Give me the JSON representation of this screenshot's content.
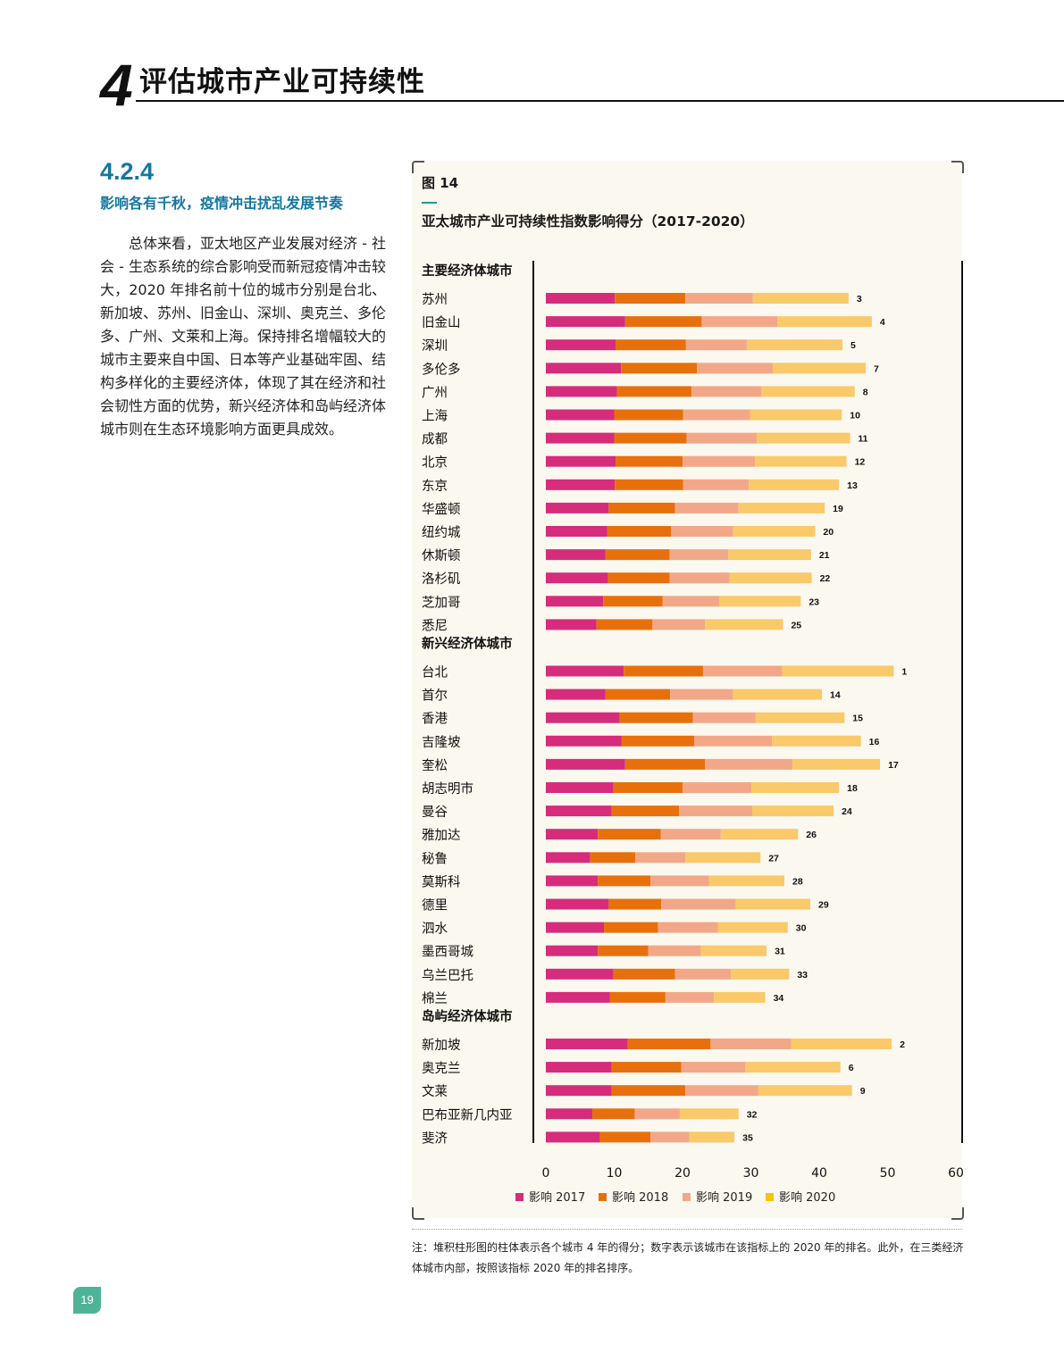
{
  "header": {
    "chapter_number": "4",
    "chapter_title": "评估城市产业可持续性"
  },
  "section": {
    "number": "4.2.4",
    "title": "影响各有千秋，疫情冲击扰乱发展节奏"
  },
  "body_text": "总体来看，亚太地区产业发展对经济 - 社会 - 生态系统的综合影响受而新冠疫情冲击较大，2020 年排名前十位的城市分别是台北、新加坡、苏州、旧金山、深圳、奥克兰、多伦多、广州、文莱和上海。保持排名增幅较大的城市主要来自中国、日本等产业基础牢固、结构多样化的主要经济体，体现了其在经济和社会韧性方面的优势，新兴经济体和岛屿经济体城市则在生态环境影响方面更具成效。",
  "figure": {
    "label": "图 14",
    "title": "亚太城市产业可持续性指数影响得分（2017-2020）"
  },
  "note": "注：堆积柱形图的柱体表示各个城市 4 年的得分；数字表示该城市在该指标上的 2020 年的排名。此外，在三类经济体城市内部，按照该指标 2020 年的排名排序。",
  "page_number": "19",
  "colors": {
    "s2017": "#d62c7c",
    "s2018": "#e8700c",
    "s2019": "#f2a888",
    "s2020": "#f9c96a",
    "accent": "#1477a0"
  },
  "chart_data": {
    "type": "bar",
    "orientation": "horizontal",
    "stacked": true,
    "title": "亚太城市产业可持续性指数影响得分（2017-2020）",
    "xlim": [
      0,
      60
    ],
    "xticks": [
      "0",
      "10",
      "20",
      "30",
      "40",
      "50",
      "60"
    ],
    "legend": [
      "影响 2017",
      "影响 2018",
      "影响 2019",
      "影响 2020"
    ],
    "groups": [
      {
        "name": "主要经济体城市",
        "cities": [
          {
            "city": "苏州",
            "values": [
              10.1,
              10.3,
              9.9,
              14.0
            ],
            "rank": "3"
          },
          {
            "city": "旧金山",
            "values": [
              11.6,
              11.2,
              11.1,
              13.8
            ],
            "rank": "4"
          },
          {
            "city": "深圳",
            "values": [
              10.2,
              10.3,
              8.9,
              14.0
            ],
            "rank": "5"
          },
          {
            "city": "多伦多",
            "values": [
              11.0,
              11.1,
              11.1,
              13.6
            ],
            "rank": "7"
          },
          {
            "city": "广州",
            "values": [
              10.4,
              10.9,
              10.2,
              13.7
            ],
            "rank": "8"
          },
          {
            "city": "上海",
            "values": [
              10.0,
              10.1,
              9.8,
              13.4
            ],
            "rank": "10"
          },
          {
            "city": "成都",
            "values": [
              10.0,
              10.6,
              10.3,
              13.6
            ],
            "rank": "11"
          },
          {
            "city": "北京",
            "values": [
              10.2,
              9.8,
              10.6,
              13.4
            ],
            "rank": "12"
          },
          {
            "city": "东京",
            "values": [
              10.1,
              10.0,
              9.6,
              13.2
            ],
            "rank": "13"
          }
        ]
      },
      {
        "name": "",
        "cities": [
          {
            "city": "华盛顿",
            "values": [
              9.2,
              9.7,
              9.3,
              12.6
            ],
            "rank": "19"
          },
          {
            "city": "纽约城",
            "values": [
              9.0,
              9.3,
              9.1,
              12.0
            ],
            "rank": "20"
          },
          {
            "city": "休斯顿",
            "values": [
              8.7,
              9.4,
              8.6,
              12.1
            ],
            "rank": "21"
          },
          {
            "city": "洛杉矶",
            "values": [
              9.1,
              9.0,
              8.8,
              12.0
            ],
            "rank": "22"
          },
          {
            "city": "芝加哥",
            "values": [
              8.4,
              8.7,
              8.3,
              11.9
            ],
            "rank": "23"
          },
          {
            "city": "悉尼",
            "values": [
              7.4,
              8.2,
              7.7,
              11.4
            ],
            "rank": "25"
          }
        ]
      },
      {
        "name": "新兴经济体城市",
        "cities": [
          {
            "city": "台北",
            "values": [
              11.4,
              11.6,
              11.6,
              16.3
            ],
            "rank": "1"
          },
          {
            "city": "首尔",
            "values": [
              8.7,
              9.5,
              9.2,
              13.0
            ],
            "rank": "14"
          },
          {
            "city": "香港",
            "values": [
              10.8,
              10.7,
              9.2,
              13.0
            ],
            "rank": "15"
          },
          {
            "city": "吉隆坡",
            "values": [
              11.1,
              10.6,
              11.4,
              13.0
            ],
            "rank": "16"
          },
          {
            "city": "奎松",
            "values": [
              11.6,
              11.7,
              12.8,
              12.8
            ],
            "rank": "17"
          },
          {
            "city": "胡志明市",
            "values": [
              9.9,
              10.1,
              10.1,
              12.8
            ],
            "rank": "18"
          },
          {
            "city": "曼谷",
            "values": [
              9.6,
              9.9,
              10.7,
              11.9
            ],
            "rank": "24"
          },
          {
            "city": "雅加达",
            "values": [
              7.6,
              9.2,
              8.8,
              11.3
            ],
            "rank": "26"
          },
          {
            "city": "秘鲁",
            "values": [
              6.5,
              6.6,
              7.3,
              11.0
            ],
            "rank": "27"
          },
          {
            "city": "莫斯科",
            "values": [
              7.6,
              7.7,
              8.6,
              11.0
            ],
            "rank": "28"
          },
          {
            "city": "德里",
            "values": [
              9.2,
              7.7,
              10.9,
              10.9
            ],
            "rank": "29"
          },
          {
            "city": "泗水",
            "values": [
              8.5,
              7.9,
              8.8,
              10.2
            ],
            "rank": "30"
          },
          {
            "city": "墨西哥城",
            "values": [
              7.6,
              7.4,
              7.7,
              9.6
            ],
            "rank": "31"
          },
          {
            "city": "乌兰巴托",
            "values": [
              9.9,
              9.0,
              8.2,
              8.5
            ],
            "rank": "33"
          },
          {
            "city": "棉兰",
            "values": [
              9.4,
              8.1,
              7.1,
              7.5
            ],
            "rank": "34"
          }
        ]
      },
      {
        "name": "岛屿经济体城市",
        "cities": [
          {
            "city": "新加坡",
            "values": [
              12.0,
              12.1,
              11.8,
              14.7
            ],
            "rank": "2"
          },
          {
            "city": "奥克兰",
            "values": [
              9.6,
              10.2,
              9.4,
              13.9
            ],
            "rank": "6"
          },
          {
            "city": "文莱",
            "values": [
              9.6,
              10.8,
              10.7,
              13.7
            ],
            "rank": "9"
          },
          {
            "city": "巴布亚新几内亚",
            "values": [
              6.8,
              6.2,
              6.6,
              8.6
            ],
            "rank": "32"
          },
          {
            "city": "斐济",
            "values": [
              7.9,
              7.4,
              5.7,
              6.6
            ],
            "rank": "35"
          }
        ]
      }
    ]
  }
}
